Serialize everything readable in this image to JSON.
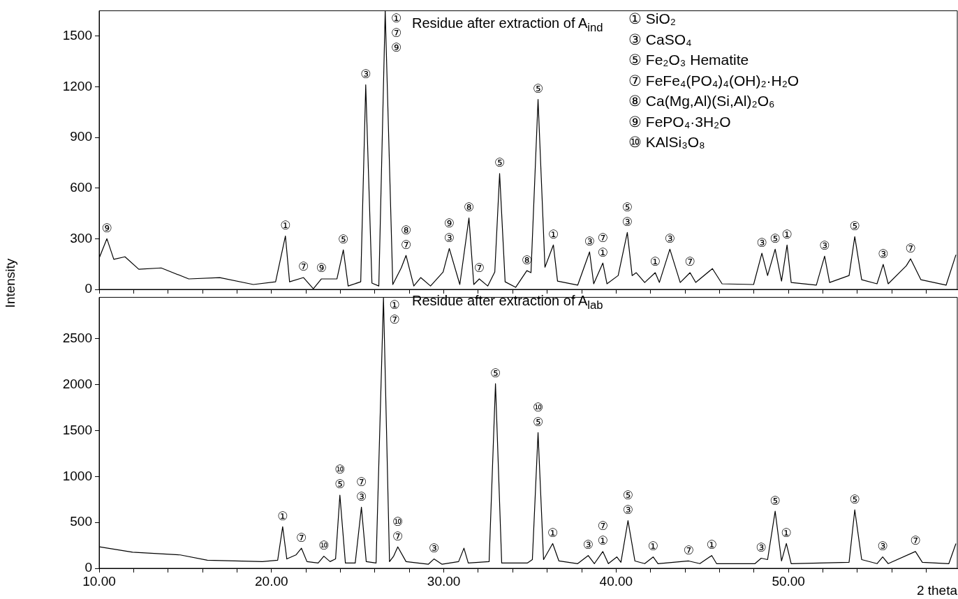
{
  "chart_data": [
    {
      "type": "line",
      "title": "Residue after extraction of A$_{ind}$",
      "ylabel": "Intensity",
      "x": [
        10,
        10.45,
        10.85,
        11.5,
        12.3,
        13.6,
        15.2,
        17.0,
        18.95,
        20.24,
        20.81,
        21.05,
        21.86,
        22.43,
        22.9,
        23.8,
        24.17,
        24.45,
        25.18,
        25.47,
        25.83,
        26.23,
        26.6,
        27.04,
        27.53,
        27.81,
        28.26,
        28.66,
        29.23,
        29.96,
        30.32,
        30.93,
        31.46,
        31.74,
        32.06,
        32.55,
        32.96,
        33.24,
        33.56,
        34.17,
        34.82,
        35.06,
        35.47,
        35.87,
        36.36,
        36.6,
        37.77,
        38.46,
        38.7,
        39.23,
        39.47,
        40.12,
        40.65,
        40.93,
        41.17,
        41.66,
        42.27,
        42.51,
        43.12,
        43.72,
        44.29,
        44.62,
        45.59,
        46.15,
        47.98,
        48.46,
        48.79,
        49.23,
        49.6,
        49.92,
        50.16,
        51.62,
        52.1,
        52.39,
        53.52,
        53.85,
        54.25,
        55.14,
        55.5,
        55.79,
        56.84,
        57.09,
        57.69,
        59.15,
        59.72
      ],
      "series": [
        {
          "color": "#000000",
          "values": [
            185,
            300,
            178,
            193,
            119,
            127,
            62,
            70,
            29,
            45,
            316,
            45,
            70,
            4,
            62,
            62,
            234,
            20,
            45,
            1211,
            37,
            20,
            1650,
            29,
            127,
            201,
            20,
            70,
            20,
            103,
            242,
            29,
            423,
            29,
            62,
            20,
            103,
            686,
            45,
            12,
            111,
            99,
            1125,
            131,
            263,
            49,
            25,
            222,
            33,
            156,
            33,
            82,
            337,
            82,
            99,
            41,
            99,
            41,
            238,
            41,
            99,
            41,
            123,
            33,
            29,
            214,
            82,
            238,
            49,
            263,
            41,
            25,
            197,
            41,
            82,
            312,
            57,
            33,
            148,
            33,
            140,
            181,
            57,
            25,
            205
          ]
        }
      ],
      "xlim": [
        10,
        59.8
      ],
      "ylim": [
        0,
        1650
      ],
      "xticks": [
        {
          "value": 10,
          "label": null
        },
        {
          "value": 12,
          "label": null
        },
        {
          "value": 14,
          "label": null
        },
        {
          "value": 16,
          "label": null
        },
        {
          "value": 18,
          "label": null
        },
        {
          "value": 20,
          "label": null
        },
        {
          "value": 22,
          "label": null
        },
        {
          "value": 24,
          "label": null
        },
        {
          "value": 26,
          "label": null
        },
        {
          "value": 28,
          "label": null
        },
        {
          "value": 30,
          "label": null
        },
        {
          "value": 32,
          "label": null
        },
        {
          "value": 34,
          "label": null
        },
        {
          "value": 36,
          "label": null
        },
        {
          "value": 38,
          "label": null
        },
        {
          "value": 40,
          "label": null
        },
        {
          "value": 42,
          "label": null
        },
        {
          "value": 44,
          "label": null
        },
        {
          "value": 46,
          "label": null
        },
        {
          "value": 48,
          "label": null
        },
        {
          "value": 50,
          "label": null
        },
        {
          "value": 52,
          "label": null
        },
        {
          "value": 54,
          "label": null
        },
        {
          "value": 56,
          "label": null
        },
        {
          "value": 58,
          "label": null
        }
      ],
      "yticks": [
        0,
        300,
        600,
        900,
        1200,
        1500
      ],
      "tick_labels": "y",
      "annotations": [
        "① SiO₂",
        "③ CaSO₄",
        "⑤ Fe₂O₃ Hematite",
        "⑦ FeFe₄(PO₄)₄(OH)₂·H₂O",
        "⑧ Ca(Mg,Al)(Si,Al)₂O₆",
        "⑨ FePO₄·3H₂O",
        "⑩ KAlSi₃O₈",
        {
          "text": "⑨",
          "x": 10.45,
          "y": 300
        },
        {
          "text": "①",
          "x": 20.81,
          "y": 316
        },
        {
          "text": "⑦",
          "x": 21.86,
          "y": 70
        },
        {
          "text": "⑨",
          "x": 22.9,
          "y": 62
        },
        {
          "text": "⑤",
          "x": 24.17,
          "y": 234
        },
        {
          "text": "③",
          "x": 25.47,
          "y": 1211
        },
        {
          "text": "⑨",
          "x": 26.6,
          "y": 1650
        },
        {
          "text": "⑦",
          "x": 26.6,
          "y": 1650
        },
        {
          "text": "①",
          "x": 26.6,
          "y": 1650
        },
        {
          "text": "⑦",
          "x": 27.81,
          "y": 201
        },
        {
          "text": "⑧",
          "x": 27.81,
          "y": 201
        },
        {
          "text": "③",
          "x": 30.32,
          "y": 242
        },
        {
          "text": "⑨",
          "x": 30.32,
          "y": 242
        },
        {
          "text": "⑧",
          "x": 31.46,
          "y": 423
        },
        {
          "text": "⑦",
          "x": 32.06,
          "y": 62
        },
        {
          "text": "⑤",
          "x": 33.24,
          "y": 686
        },
        {
          "text": "⑧",
          "x": 34.82,
          "y": 111
        },
        {
          "text": "⑤",
          "x": 35.47,
          "y": 1125
        },
        {
          "text": "①",
          "x": 36.36,
          "y": 263
        },
        {
          "text": "③",
          "x": 38.46,
          "y": 222
        },
        {
          "text": "①",
          "x": 39.23,
          "y": 156
        },
        {
          "text": "⑦",
          "x": 39.23,
          "y": 156
        },
        {
          "text": "③",
          "x": 40.65,
          "y": 337
        },
        {
          "text": "⑤",
          "x": 40.65,
          "y": 337
        },
        {
          "text": "①",
          "x": 42.27,
          "y": 99
        },
        {
          "text": "③",
          "x": 43.12,
          "y": 238
        },
        {
          "text": "⑦",
          "x": 44.29,
          "y": 99
        },
        {
          "text": "③",
          "x": 48.46,
          "y": 214
        },
        {
          "text": "⑤",
          "x": 49.23,
          "y": 238
        },
        {
          "text": "①",
          "x": 49.92,
          "y": 263
        },
        {
          "text": "③",
          "x": 52.1,
          "y": 197
        },
        {
          "text": "⑤",
          "x": 53.85,
          "y": 312
        },
        {
          "text": "③",
          "x": 55.5,
          "y": 148
        },
        {
          "text": "⑦",
          "x": 57.09,
          "y": 181
        }
      ]
    },
    {
      "type": "line",
      "title": "Residue after extraction of A$_{lab}$",
      "xlabel": "2 theta",
      "x": [
        10,
        11.94,
        14.7,
        16.28,
        19.47,
        20.36,
        20.65,
        20.89,
        21.42,
        21.74,
        22.06,
        22.71,
        23.04,
        23.4,
        23.72,
        23.97,
        24.29,
        24.86,
        25.22,
        25.5,
        26.07,
        26.5,
        26.85,
        27.09,
        27.33,
        27.81,
        29.1,
        29.43,
        29.9,
        30.86,
        31.17,
        31.42,
        32.63,
        33.0,
        33.36,
        34.86,
        35.14,
        35.47,
        35.79,
        36.32,
        36.68,
        37.77,
        38.38,
        38.74,
        39.23,
        39.55,
        40.04,
        40.28,
        40.69,
        41.09,
        41.66,
        42.15,
        42.43,
        44.21,
        44.86,
        45.55,
        45.83,
        48.06,
        48.42,
        48.79,
        49.23,
        49.6,
        49.88,
        50.16,
        53.52,
        53.85,
        54.25,
        55.14,
        55.47,
        55.79,
        57.37,
        57.77,
        59.31,
        59.72
      ],
      "series": [
        {
          "color": "#000000",
          "values": [
            234,
            175,
            146,
            88,
            73,
            88,
            453,
            102,
            146,
            219,
            73,
            58,
            132,
            73,
            102,
            797,
            58,
            58,
            665,
            73,
            58,
            2950,
            73,
            132,
            234,
            73,
            44,
            102,
            44,
            73,
            219,
            58,
            73,
            2010,
            58,
            58,
            95,
            1477,
            95,
            270,
            80,
            51,
            139,
            51,
            183,
            51,
            124,
            66,
            519,
            80,
            51,
            124,
            51,
            80,
            51,
            139,
            51,
            51,
            110,
            95,
            621,
            80,
            270,
            51,
            66,
            636,
            95,
            51,
            124,
            51,
            183,
            66,
            51,
            270
          ]
        }
      ],
      "xlim": [
        10,
        59.8
      ],
      "ylim": [
        0,
        2950
      ],
      "xticks": [
        {
          "value": 10,
          "label": "10.00"
        },
        {
          "value": 12,
          "label": null
        },
        {
          "value": 14,
          "label": null
        },
        {
          "value": 16,
          "label": null
        },
        {
          "value": 18,
          "label": null
        },
        {
          "value": 20,
          "label": "20.00"
        },
        {
          "value": 22,
          "label": null
        },
        {
          "value": 24,
          "label": null
        },
        {
          "value": 26,
          "label": null
        },
        {
          "value": 28,
          "label": null
        },
        {
          "value": 30,
          "label": "30.00"
        },
        {
          "value": 32,
          "label": null
        },
        {
          "value": 34,
          "label": null
        },
        {
          "value": 36,
          "label": null
        },
        {
          "value": 38,
          "label": null
        },
        {
          "value": 40,
          "label": "40.00"
        },
        {
          "value": 42,
          "label": null
        },
        {
          "value": 44,
          "label": null
        },
        {
          "value": 46,
          "label": null
        },
        {
          "value": 48,
          "label": null
        },
        {
          "value": 50,
          "label": "50.00"
        },
        {
          "value": 52,
          "label": null
        },
        {
          "value": 54,
          "label": null
        },
        {
          "value": 56,
          "label": null
        },
        {
          "value": 58,
          "label": null
        }
      ],
      "yticks": [
        0,
        500,
        1000,
        1500,
        2000,
        2500
      ],
      "annotations": [
        {
          "text": "①",
          "x": 20.65,
          "y": 453
        },
        {
          "text": "⑦",
          "x": 21.74,
          "y": 219
        },
        {
          "text": "⑩",
          "x": 23.04,
          "y": 132
        },
        {
          "text": "⑤",
          "x": 23.97,
          "y": 797
        },
        {
          "text": "⑩",
          "x": 23.97,
          "y": 797
        },
        {
          "text": "③",
          "x": 25.22,
          "y": 665
        },
        {
          "text": "⑦",
          "x": 25.22,
          "y": 665
        },
        {
          "text": "⑦",
          "x": 26.5,
          "y": 2950
        },
        {
          "text": "①",
          "x": 26.5,
          "y": 2950
        },
        {
          "text": "⑦",
          "x": 27.33,
          "y": 234
        },
        {
          "text": "⑩",
          "x": 27.33,
          "y": 234
        },
        {
          "text": "③",
          "x": 29.43,
          "y": 102
        },
        {
          "text": "⑤",
          "x": 33.0,
          "y": 2010
        },
        {
          "text": "⑤",
          "x": 35.47,
          "y": 1477
        },
        {
          "text": "⑩",
          "x": 35.47,
          "y": 1477
        },
        {
          "text": "①",
          "x": 36.32,
          "y": 270
        },
        {
          "text": "③",
          "x": 38.38,
          "y": 139
        },
        {
          "text": "①",
          "x": 39.23,
          "y": 183
        },
        {
          "text": "⑦",
          "x": 39.23,
          "y": 183
        },
        {
          "text": "③",
          "x": 40.69,
          "y": 519
        },
        {
          "text": "⑤",
          "x": 40.69,
          "y": 519
        },
        {
          "text": "①",
          "x": 42.15,
          "y": 124
        },
        {
          "text": "⑦",
          "x": 44.21,
          "y": 80
        },
        {
          "text": "①",
          "x": 45.55,
          "y": 139
        },
        {
          "text": "③",
          "x": 48.42,
          "y": 110
        },
        {
          "text": "⑤",
          "x": 49.23,
          "y": 621
        },
        {
          "text": "①",
          "x": 49.88,
          "y": 270
        },
        {
          "text": "⑤",
          "x": 53.85,
          "y": 636
        },
        {
          "text": "③",
          "x": 55.47,
          "y": 124
        },
        {
          "text": "⑦",
          "x": 57.37,
          "y": 183
        }
      ]
    }
  ]
}
